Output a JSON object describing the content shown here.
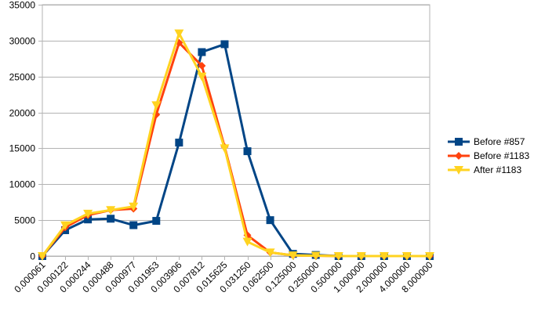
{
  "chart_data": {
    "type": "line",
    "title": "",
    "xlabel": "",
    "ylabel": "",
    "ylim": [
      0,
      35000
    ],
    "yticks": [
      0,
      5000,
      10000,
      15000,
      20000,
      25000,
      30000,
      35000
    ],
    "grid": "horizontal",
    "legend_position": "right",
    "categories": [
      "0.000061",
      "0.000122",
      "0.000244",
      "0.000488",
      "0.000977",
      "0.001953",
      "0.003906",
      "0.007812",
      "0.015625",
      "0.031250",
      "0.062500",
      "0.125000",
      "0.250000",
      "0.500000",
      "1.000000",
      "2.000000",
      "4.000000",
      "8.000000"
    ],
    "series": [
      {
        "name": "Before #857",
        "color": "#004586",
        "marker": "square",
        "values": [
          0,
          3600,
          5100,
          5200,
          4300,
          4900,
          15800,
          28400,
          29500,
          14600,
          5000,
          300,
          150,
          0,
          0,
          0,
          0,
          0
        ]
      },
      {
        "name": "Before #1183",
        "color": "#ff420e",
        "marker": "diamond",
        "values": [
          0,
          4000,
          5700,
          6400,
          6600,
          19700,
          29700,
          26500,
          15200,
          2900,
          500,
          100,
          50,
          0,
          0,
          0,
          0,
          0
        ]
      },
      {
        "name": "After #1183",
        "color": "#ffd320",
        "marker": "triangle-down",
        "values": [
          0,
          4300,
          5900,
          6400,
          6900,
          21000,
          31000,
          25000,
          15000,
          2000,
          500,
          100,
          50,
          0,
          0,
          0,
          0,
          0
        ]
      }
    ]
  }
}
